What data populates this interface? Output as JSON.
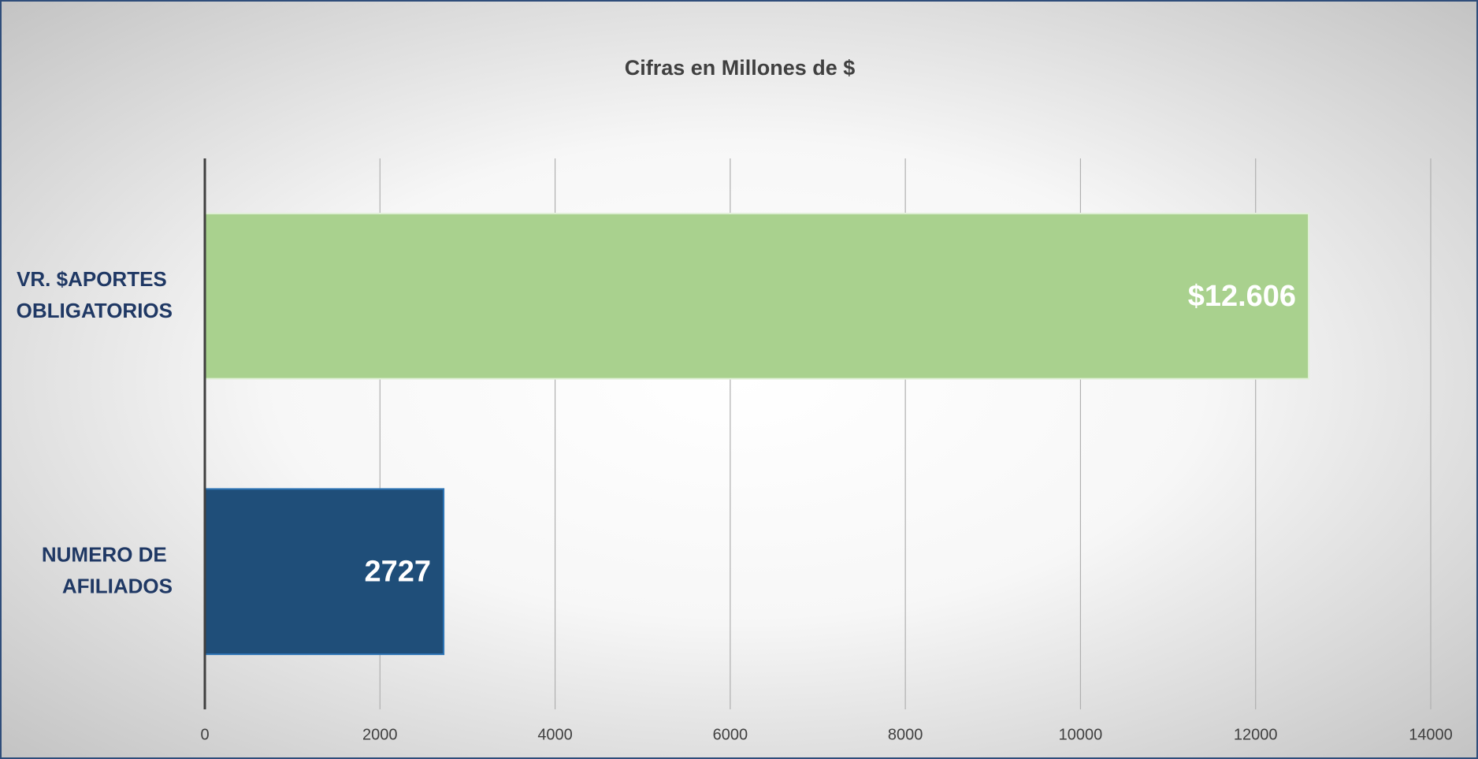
{
  "chart_data": {
    "type": "hbar",
    "title": "Cifras en Millones de $",
    "categories": [
      "VR. $APORTES OBLIGATORIOS",
      "NUMERO DE AFILIADOS"
    ],
    "values": [
      12606,
      2727
    ],
    "value_labels": [
      "$12.606",
      "2727"
    ],
    "colors": [
      "#a9d18e",
      "#1f4e79"
    ],
    "xlim": [
      0,
      14000
    ],
    "xticks": [
      0,
      2000,
      4000,
      6000,
      8000,
      10000,
      12000,
      14000
    ],
    "grid": true
  }
}
